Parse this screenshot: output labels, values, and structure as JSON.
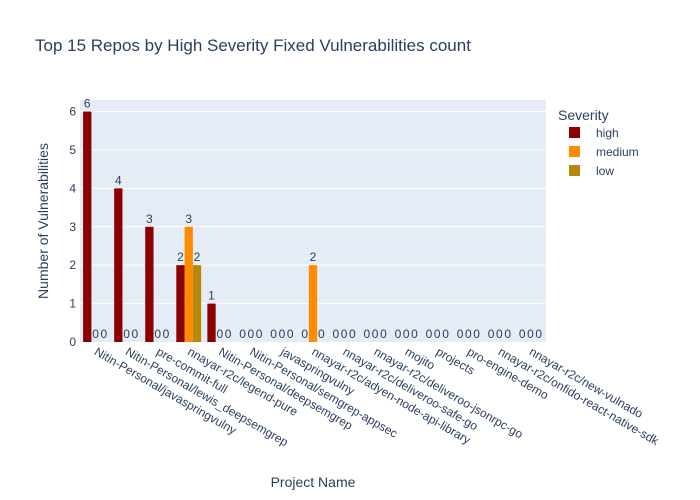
{
  "chart_data": {
    "type": "bar",
    "title": "Top 15 Repos by High Severity Fixed Vulnerabilities count",
    "xlabel": "Project Name",
    "ylabel": "Number of Vulnerabilities",
    "ylim": [
      0,
      6.3
    ],
    "yticks": [
      0,
      1,
      2,
      3,
      4,
      5,
      6
    ],
    "grid": true,
    "legend_title": "Severity",
    "legend_position": "top-right",
    "categories": [
      "Nitin-Personal/javaspringvulny",
      "Nitin-Personal/lewis_deepsemgrep",
      "pre-commit-full",
      "nnayar-r2c/legend-pure",
      "Nitin-Personal/deepsemgrep",
      "Nitin-Personal/semgrep-appsec",
      "javaspringvulny",
      "nnayar-r2c/adyen-node-api-library",
      "nnayar-r2c/deliveroo-safe-go",
      "nnayar-r2c/deliveroo-jsonrpc-go",
      "mojito",
      "projects",
      "pro-engine-demo",
      "nnayar-r2c/onfido-react-native-sdk",
      "nnayar-r2c/new-vulnado"
    ],
    "series": [
      {
        "name": "high",
        "color": "#8b0000",
        "values": [
          6,
          4,
          3,
          2,
          1,
          0,
          0,
          0,
          0,
          0,
          0,
          0,
          0,
          0,
          0
        ]
      },
      {
        "name": "medium",
        "color": "#ff8c00",
        "values": [
          0,
          0,
          0,
          3,
          0,
          0,
          0,
          2,
          0,
          0,
          0,
          0,
          0,
          0,
          0
        ]
      },
      {
        "name": "low",
        "color": "#b8860b",
        "values": [
          0,
          0,
          0,
          2,
          0,
          0,
          0,
          0,
          0,
          0,
          0,
          0,
          0,
          0,
          0
        ]
      }
    ]
  }
}
